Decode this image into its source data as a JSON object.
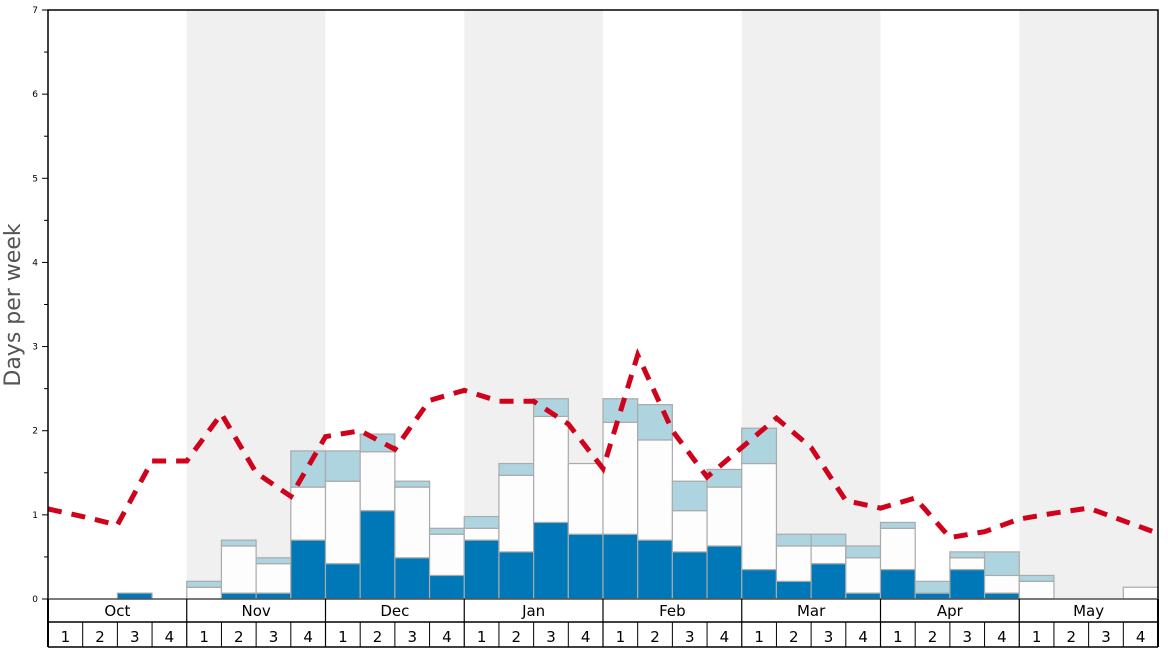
{
  "chart_data": {
    "type": "bar",
    "title": "",
    "ylabel": "Days per week",
    "xlabel": "",
    "ylim": [
      0,
      7
    ],
    "yticks": [
      "0",
      "1",
      "2",
      "3",
      "4",
      "5",
      "6",
      "7"
    ],
    "months": [
      "Oct",
      "Nov",
      "Dec",
      "Jan",
      "Feb",
      "Mar",
      "Apr",
      "May"
    ],
    "shaded_months": [
      "Nov",
      "Jan",
      "Mar",
      "May"
    ],
    "week_labels": [
      "1",
      "2",
      "3",
      "4"
    ],
    "colors": {
      "dark": "#0077b6",
      "white": "#fdfdfd",
      "light": "#aed4e0",
      "line": "#d0021b",
      "band": "#f0f0f0"
    },
    "series": [
      {
        "name": "dark",
        "values": [
          0,
          0,
          0.07,
          0,
          0,
          0.07,
          0.07,
          0.7,
          0.42,
          1.05,
          0.49,
          0.28,
          0.7,
          0.56,
          0.91,
          0.77,
          0.77,
          0.7,
          0.56,
          0.63,
          0.35,
          0.21,
          0.42,
          0.07,
          0.35,
          0.07,
          0.35,
          0.07,
          0,
          0,
          0,
          0
        ]
      },
      {
        "name": "white",
        "values": [
          0,
          0,
          0,
          0,
          0.14,
          0.56,
          0.35,
          0.63,
          0.98,
          0.7,
          0.84,
          0.49,
          0.14,
          0.91,
          1.26,
          0.84,
          1.33,
          1.19,
          0.49,
          0.7,
          1.26,
          0.42,
          0.21,
          0.42,
          0.49,
          0,
          0.14,
          0.21,
          0.21,
          0,
          0,
          0.14
        ]
      },
      {
        "name": "light",
        "values": [
          0,
          0,
          0,
          0,
          0.07,
          0.07,
          0.07,
          0.43,
          0.36,
          0.21,
          0.07,
          0.07,
          0.14,
          0.14,
          0.21,
          0,
          0.28,
          0.42,
          0.35,
          0.21,
          0.42,
          0.14,
          0.14,
          0.14,
          0.07,
          0.14,
          0.07,
          0.28,
          0.07,
          0,
          0,
          0
        ]
      }
    ],
    "average_line": {
      "name": "average",
      "values": [
        1.07,
        0.98,
        0.88,
        1.64,
        1.64,
        2.2,
        1.5,
        1.22,
        1.93,
        2.0,
        1.78,
        2.36,
        2.48,
        2.35,
        2.35,
        2.08,
        1.55,
        2.9,
        2.0,
        1.45,
        1.8,
        2.15,
        1.8,
        1.17,
        1.08,
        1.2,
        0.73,
        0.8,
        0.95,
        1.02,
        1.08,
        0.93,
        0.78
      ]
    }
  }
}
